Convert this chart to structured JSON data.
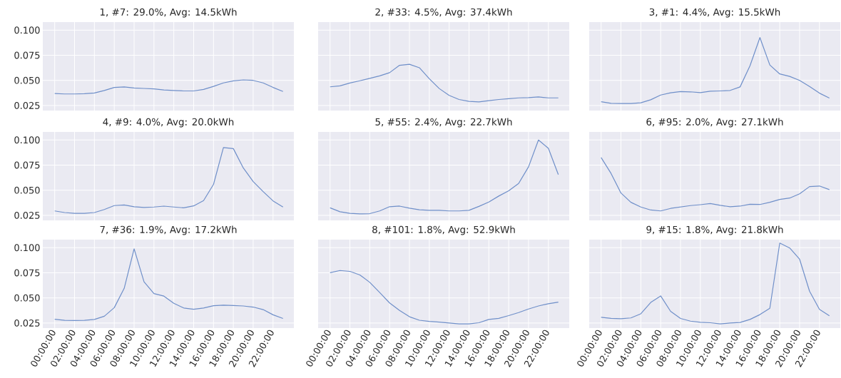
{
  "chart_data": [
    {
      "type": "line",
      "title": "1, #7: 29.0%, Avg: 14.5kWh",
      "color": "#6f8fc9",
      "grid": true,
      "tick_labels": "y",
      "x": [
        0,
        1,
        2,
        3,
        4,
        5,
        6,
        7,
        8,
        9,
        10,
        11,
        12,
        13,
        14,
        15,
        16,
        17,
        18,
        19,
        20,
        21,
        22,
        23
      ],
      "values": [
        0.037,
        0.0365,
        0.0365,
        0.0367,
        0.0375,
        0.04,
        0.043,
        0.0435,
        0.0425,
        0.042,
        0.0415,
        0.0405,
        0.04,
        0.0395,
        0.0395,
        0.041,
        0.044,
        0.0475,
        0.0495,
        0.0505,
        0.05,
        0.0475,
        0.043,
        0.039
      ],
      "xlim": [
        -1.2,
        24.1
      ],
      "ylim": [
        0.02,
        0.108
      ],
      "xticks": [
        {
          "value": 0,
          "label": null
        },
        {
          "value": 2,
          "label": null
        },
        {
          "value": 4,
          "label": null
        },
        {
          "value": 6,
          "label": null
        },
        {
          "value": 8,
          "label": null
        },
        {
          "value": 10,
          "label": null
        },
        {
          "value": 12,
          "label": null
        },
        {
          "value": 14,
          "label": null
        },
        {
          "value": 16,
          "label": null
        },
        {
          "value": 18,
          "label": null
        },
        {
          "value": 20,
          "label": null
        },
        {
          "value": 22,
          "label": null
        }
      ],
      "yticks": [
        {
          "value": 0.025,
          "label": "0.025"
        },
        {
          "value": 0.05,
          "label": "0.050"
        },
        {
          "value": 0.075,
          "label": "0.075"
        },
        {
          "value": 0.1,
          "label": "0.100"
        }
      ]
    },
    {
      "type": "line",
      "title": "2, #33: 4.5%, Avg: 37.4kWh",
      "color": "#6f8fc9",
      "grid": true,
      "tick_labels": false,
      "x": [
        0,
        1,
        2,
        3,
        4,
        5,
        6,
        7,
        8,
        9,
        10,
        11,
        12,
        13,
        14,
        15,
        16,
        17,
        18,
        19,
        20,
        21,
        22,
        23
      ],
      "values": [
        0.0436,
        0.0446,
        0.0474,
        0.0496,
        0.052,
        0.0545,
        0.0577,
        0.065,
        0.066,
        0.0626,
        0.0517,
        0.0419,
        0.0351,
        0.031,
        0.0291,
        0.0286,
        0.0299,
        0.031,
        0.0318,
        0.0326,
        0.0329,
        0.0335,
        0.0326,
        0.0326
      ],
      "xlim": [
        -1.2,
        24.1
      ],
      "ylim": [
        0.02,
        0.108
      ],
      "xticks": [
        {
          "value": 0,
          "label": null
        },
        {
          "value": 2,
          "label": null
        },
        {
          "value": 4,
          "label": null
        },
        {
          "value": 6,
          "label": null
        },
        {
          "value": 8,
          "label": null
        },
        {
          "value": 10,
          "label": null
        },
        {
          "value": 12,
          "label": null
        },
        {
          "value": 14,
          "label": null
        },
        {
          "value": 16,
          "label": null
        },
        {
          "value": 18,
          "label": null
        },
        {
          "value": 20,
          "label": null
        },
        {
          "value": 22,
          "label": null
        }
      ],
      "yticks": [
        {
          "value": 0.025,
          "label": null
        },
        {
          "value": 0.05,
          "label": null
        },
        {
          "value": 0.075,
          "label": null
        },
        {
          "value": 0.1,
          "label": null
        }
      ]
    },
    {
      "type": "line",
      "title": "3, #1: 4.4%, Avg: 15.5kWh",
      "color": "#6f8fc9",
      "grid": true,
      "tick_labels": false,
      "x": [
        0,
        1,
        2,
        3,
        4,
        5,
        6,
        7,
        8,
        9,
        10,
        11,
        12,
        13,
        14,
        15,
        16,
        17,
        18,
        19,
        20,
        21,
        22,
        23
      ],
      "values": [
        0.0288,
        0.0272,
        0.027,
        0.027,
        0.0277,
        0.0307,
        0.0354,
        0.0376,
        0.0389,
        0.0386,
        0.0378,
        0.0392,
        0.0395,
        0.04,
        0.0435,
        0.0645,
        0.0926,
        0.0653,
        0.0564,
        0.054,
        0.05,
        0.044,
        0.0373,
        0.0324
      ],
      "xlim": [
        -1.2,
        24.1
      ],
      "ylim": [
        0.02,
        0.108
      ],
      "xticks": [
        {
          "value": 0,
          "label": null
        },
        {
          "value": 2,
          "label": null
        },
        {
          "value": 4,
          "label": null
        },
        {
          "value": 6,
          "label": null
        },
        {
          "value": 8,
          "label": null
        },
        {
          "value": 10,
          "label": null
        },
        {
          "value": 12,
          "label": null
        },
        {
          "value": 14,
          "label": null
        },
        {
          "value": 16,
          "label": null
        },
        {
          "value": 18,
          "label": null
        },
        {
          "value": 20,
          "label": null
        },
        {
          "value": 22,
          "label": null
        }
      ],
      "yticks": [
        {
          "value": 0.025,
          "label": null
        },
        {
          "value": 0.05,
          "label": null
        },
        {
          "value": 0.075,
          "label": null
        },
        {
          "value": 0.1,
          "label": null
        }
      ]
    },
    {
      "type": "line",
      "title": "4, #9: 4.0%, Avg: 20.0kWh",
      "color": "#6f8fc9",
      "grid": true,
      "tick_labels": "y",
      "x": [
        0,
        1,
        2,
        3,
        4,
        5,
        6,
        7,
        8,
        9,
        10,
        11,
        12,
        13,
        14,
        15,
        16,
        17,
        18,
        19,
        20,
        21,
        22,
        23
      ],
      "values": [
        0.0294,
        0.0278,
        0.027,
        0.027,
        0.0278,
        0.0308,
        0.0347,
        0.0353,
        0.0336,
        0.0328,
        0.0333,
        0.0342,
        0.0333,
        0.0325,
        0.0344,
        0.0397,
        0.0558,
        0.0925,
        0.0914,
        0.0722,
        0.0586,
        0.0486,
        0.0394,
        0.0333
      ],
      "xlim": [
        -1.2,
        24.1
      ],
      "ylim": [
        0.02,
        0.108
      ],
      "xticks": [
        {
          "value": 0,
          "label": null
        },
        {
          "value": 2,
          "label": null
        },
        {
          "value": 4,
          "label": null
        },
        {
          "value": 6,
          "label": null
        },
        {
          "value": 8,
          "label": null
        },
        {
          "value": 10,
          "label": null
        },
        {
          "value": 12,
          "label": null
        },
        {
          "value": 14,
          "label": null
        },
        {
          "value": 16,
          "label": null
        },
        {
          "value": 18,
          "label": null
        },
        {
          "value": 20,
          "label": null
        },
        {
          "value": 22,
          "label": null
        }
      ],
      "yticks": [
        {
          "value": 0.025,
          "label": "0.025"
        },
        {
          "value": 0.05,
          "label": "0.050"
        },
        {
          "value": 0.075,
          "label": "0.075"
        },
        {
          "value": 0.1,
          "label": "0.100"
        }
      ]
    },
    {
      "type": "line",
      "title": "5, #55: 2.4%, Avg: 22.7kWh",
      "color": "#6f8fc9",
      "grid": true,
      "tick_labels": false,
      "x": [
        0,
        1,
        2,
        3,
        4,
        5,
        6,
        7,
        8,
        9,
        10,
        11,
        12,
        13,
        14,
        15,
        16,
        17,
        18,
        19,
        20,
        21,
        22,
        23
      ],
      "values": [
        0.0325,
        0.0286,
        0.027,
        0.0264,
        0.0267,
        0.0294,
        0.0336,
        0.0342,
        0.0322,
        0.0306,
        0.03,
        0.03,
        0.0294,
        0.0294,
        0.03,
        0.0339,
        0.0383,
        0.0442,
        0.0494,
        0.0567,
        0.0733,
        0.1,
        0.0917,
        0.0656
      ],
      "xlim": [
        -1.2,
        24.1
      ],
      "ylim": [
        0.02,
        0.108
      ],
      "xticks": [
        {
          "value": 0,
          "label": null
        },
        {
          "value": 2,
          "label": null
        },
        {
          "value": 4,
          "label": null
        },
        {
          "value": 6,
          "label": null
        },
        {
          "value": 8,
          "label": null
        },
        {
          "value": 10,
          "label": null
        },
        {
          "value": 12,
          "label": null
        },
        {
          "value": 14,
          "label": null
        },
        {
          "value": 16,
          "label": null
        },
        {
          "value": 18,
          "label": null
        },
        {
          "value": 20,
          "label": null
        },
        {
          "value": 22,
          "label": null
        }
      ],
      "yticks": [
        {
          "value": 0.025,
          "label": null
        },
        {
          "value": 0.05,
          "label": null
        },
        {
          "value": 0.075,
          "label": null
        },
        {
          "value": 0.1,
          "label": null
        }
      ]
    },
    {
      "type": "line",
      "title": "6, #95: 2.0%, Avg: 27.1kWh",
      "color": "#6f8fc9",
      "grid": true,
      "tick_labels": false,
      "x": [
        0,
        1,
        2,
        3,
        4,
        5,
        6,
        7,
        8,
        9,
        10,
        11,
        12,
        13,
        14,
        15,
        16,
        17,
        18,
        19,
        20,
        21,
        22,
        23
      ],
      "values": [
        0.0825,
        0.0667,
        0.0472,
        0.038,
        0.0333,
        0.0303,
        0.0294,
        0.0319,
        0.0333,
        0.0347,
        0.0356,
        0.0367,
        0.035,
        0.0336,
        0.0342,
        0.0361,
        0.0358,
        0.038,
        0.0408,
        0.0422,
        0.0464,
        0.0536,
        0.0542,
        0.0506
      ],
      "xlim": [
        -1.2,
        24.1
      ],
      "ylim": [
        0.02,
        0.108
      ],
      "xticks": [
        {
          "value": 0,
          "label": null
        },
        {
          "value": 2,
          "label": null
        },
        {
          "value": 4,
          "label": null
        },
        {
          "value": 6,
          "label": null
        },
        {
          "value": 8,
          "label": null
        },
        {
          "value": 10,
          "label": null
        },
        {
          "value": 12,
          "label": null
        },
        {
          "value": 14,
          "label": null
        },
        {
          "value": 16,
          "label": null
        },
        {
          "value": 18,
          "label": null
        },
        {
          "value": 20,
          "label": null
        },
        {
          "value": 22,
          "label": null
        }
      ],
      "yticks": [
        {
          "value": 0.025,
          "label": null
        },
        {
          "value": 0.05,
          "label": null
        },
        {
          "value": 0.075,
          "label": null
        },
        {
          "value": 0.1,
          "label": null
        }
      ]
    },
    {
      "type": "line",
      "title": "7, #36: 1.9%, Avg: 17.2kWh",
      "color": "#6f8fc9",
      "grid": true,
      "x": [
        0,
        1,
        2,
        3,
        4,
        5,
        6,
        7,
        8,
        9,
        10,
        11,
        12,
        13,
        14,
        15,
        16,
        17,
        18,
        19,
        20,
        21,
        22,
        23
      ],
      "values": [
        0.0288,
        0.0277,
        0.0275,
        0.0277,
        0.0286,
        0.0318,
        0.0403,
        0.0595,
        0.0989,
        0.066,
        0.0543,
        0.0518,
        0.0447,
        0.04,
        0.0387,
        0.04,
        0.0422,
        0.0428,
        0.0425,
        0.042,
        0.0409,
        0.0384,
        0.0332,
        0.0296
      ],
      "xlim": [
        -1.2,
        24.1
      ],
      "ylim": [
        0.02,
        0.108
      ],
      "xticks": [
        {
          "value": 0,
          "label": "00:00:00"
        },
        {
          "value": 2,
          "label": "02:00:00"
        },
        {
          "value": 4,
          "label": "04:00:00"
        },
        {
          "value": 6,
          "label": "06:00:00"
        },
        {
          "value": 8,
          "label": "08:00:00"
        },
        {
          "value": 10,
          "label": "10:00:00"
        },
        {
          "value": 12,
          "label": "12:00:00"
        },
        {
          "value": 14,
          "label": "14:00:00"
        },
        {
          "value": 16,
          "label": "16:00:00"
        },
        {
          "value": 18,
          "label": "18:00:00"
        },
        {
          "value": 20,
          "label": "20:00:00"
        },
        {
          "value": 22,
          "label": "22:00:00"
        }
      ],
      "yticks": [
        {
          "value": 0.025,
          "label": "0.025"
        },
        {
          "value": 0.05,
          "label": "0.050"
        },
        {
          "value": 0.075,
          "label": "0.075"
        },
        {
          "value": 0.1,
          "label": "0.100"
        }
      ]
    },
    {
      "type": "line",
      "title": "8, #101: 1.8%, Avg: 52.9kWh",
      "color": "#6f8fc9",
      "grid": true,
      "tick_labels": "x",
      "x": [
        0,
        1,
        2,
        3,
        4,
        5,
        6,
        7,
        8,
        9,
        10,
        11,
        12,
        13,
        14,
        15,
        16,
        17,
        18,
        19,
        20,
        21,
        22,
        23
      ],
      "values": [
        0.0751,
        0.0773,
        0.0764,
        0.0729,
        0.0655,
        0.0554,
        0.045,
        0.0376,
        0.0313,
        0.0278,
        0.0267,
        0.0259,
        0.025,
        0.0242,
        0.0242,
        0.0253,
        0.0286,
        0.0297,
        0.0324,
        0.0354,
        0.039,
        0.042,
        0.0442,
        0.0458
      ],
      "xlim": [
        -1.2,
        24.1
      ],
      "ylim": [
        0.02,
        0.108
      ],
      "xticks": [
        {
          "value": 0,
          "label": "00:00:00"
        },
        {
          "value": 2,
          "label": "02:00:00"
        },
        {
          "value": 4,
          "label": "04:00:00"
        },
        {
          "value": 6,
          "label": "06:00:00"
        },
        {
          "value": 8,
          "label": "08:00:00"
        },
        {
          "value": 10,
          "label": "10:00:00"
        },
        {
          "value": 12,
          "label": "12:00:00"
        },
        {
          "value": 14,
          "label": "14:00:00"
        },
        {
          "value": 16,
          "label": "16:00:00"
        },
        {
          "value": 18,
          "label": "18:00:00"
        },
        {
          "value": 20,
          "label": "20:00:00"
        },
        {
          "value": 22,
          "label": "22:00:00"
        }
      ],
      "yticks": [
        {
          "value": 0.025,
          "label": null
        },
        {
          "value": 0.05,
          "label": null
        },
        {
          "value": 0.075,
          "label": null
        },
        {
          "value": 0.1,
          "label": null
        }
      ]
    },
    {
      "type": "line",
      "title": "9, #15: 1.8%, Avg: 21.8kWh",
      "color": "#6f8fc9",
      "grid": true,
      "tick_labels": "x",
      "x": [
        0,
        1,
        2,
        3,
        4,
        5,
        6,
        7,
        8,
        9,
        10,
        11,
        12,
        13,
        14,
        15,
        16,
        17,
        18,
        19,
        20,
        21,
        22,
        23
      ],
      "values": [
        0.0307,
        0.0296,
        0.0293,
        0.0301,
        0.0342,
        0.0455,
        0.052,
        0.0367,
        0.0296,
        0.0269,
        0.0258,
        0.0253,
        0.0242,
        0.025,
        0.0256,
        0.0286,
        0.0334,
        0.0397,
        0.1046,
        0.0997,
        0.0885,
        0.0567,
        0.0386,
        0.0323
      ],
      "xlim": [
        -1.2,
        24.1
      ],
      "ylim": [
        0.02,
        0.108
      ],
      "xticks": [
        {
          "value": 0,
          "label": "00:00:00"
        },
        {
          "value": 2,
          "label": "02:00:00"
        },
        {
          "value": 4,
          "label": "04:00:00"
        },
        {
          "value": 6,
          "label": "06:00:00"
        },
        {
          "value": 8,
          "label": "08:00:00"
        },
        {
          "value": 10,
          "label": "10:00:00"
        },
        {
          "value": 12,
          "label": "12:00:00"
        },
        {
          "value": 14,
          "label": "14:00:00"
        },
        {
          "value": 16,
          "label": "16:00:00"
        },
        {
          "value": 18,
          "label": "18:00:00"
        },
        {
          "value": 20,
          "label": "20:00:00"
        },
        {
          "value": 22,
          "label": "22:00:00"
        }
      ],
      "yticks": [
        {
          "value": 0.025,
          "label": null
        },
        {
          "value": 0.05,
          "label": null
        },
        {
          "value": 0.075,
          "label": null
        },
        {
          "value": 0.1,
          "label": null
        }
      ]
    }
  ]
}
